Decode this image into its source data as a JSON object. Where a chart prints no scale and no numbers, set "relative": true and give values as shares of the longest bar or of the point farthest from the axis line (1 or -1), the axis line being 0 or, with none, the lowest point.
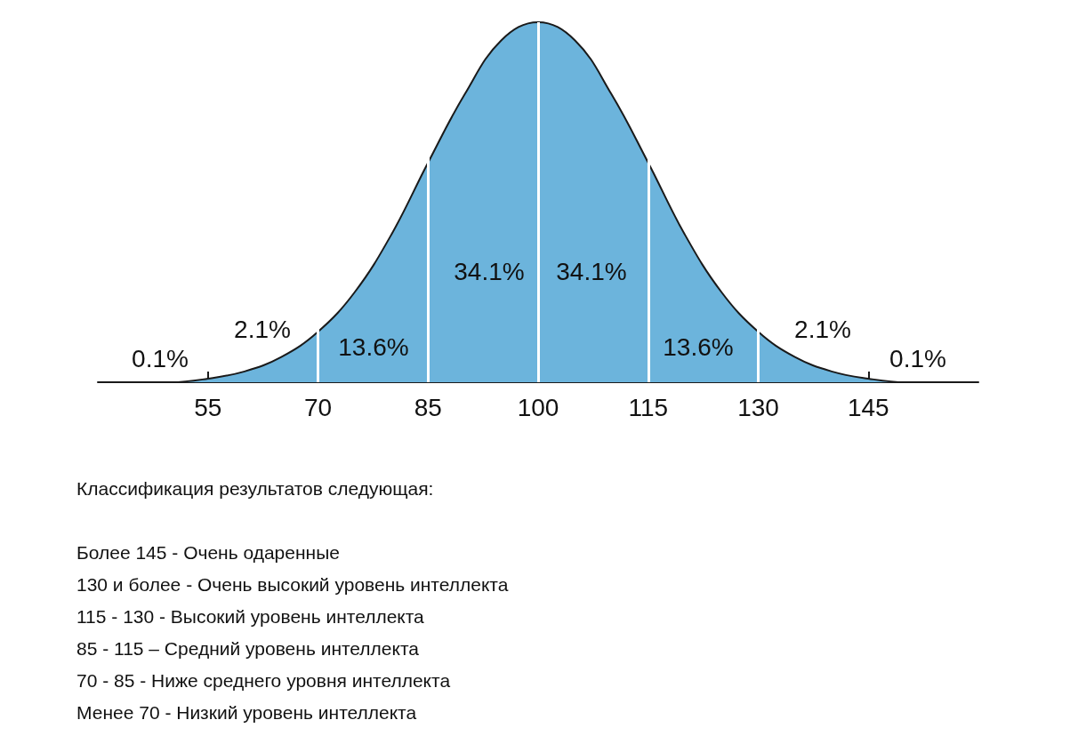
{
  "chart_data": {
    "type": "area",
    "relative": true,
    "color": "#6cb4dc",
    "x": [
      40,
      45,
      50,
      55,
      60,
      65,
      70,
      75,
      80,
      85,
      90,
      95,
      100,
      105,
      110,
      115,
      120,
      125,
      130,
      135,
      140,
      145,
      150,
      155,
      160
    ],
    "values": [
      0.0,
      0.0,
      0.0,
      0.01,
      0.03,
      0.07,
      0.14,
      0.25,
      0.41,
      0.61,
      0.8,
      0.95,
      1.0,
      0.95,
      0.8,
      0.61,
      0.41,
      0.25,
      0.14,
      0.07,
      0.03,
      0.01,
      0.0,
      0.0,
      0.0
    ],
    "xlim": [
      40,
      160
    ],
    "xticks": [
      55,
      70,
      85,
      100,
      115,
      130,
      145
    ],
    "ref_lines": [
      {
        "axis": "x",
        "value": 70,
        "color": "#ffffff"
      },
      {
        "axis": "x",
        "value": 85,
        "color": "#ffffff"
      },
      {
        "axis": "x",
        "value": 100,
        "color": "#ffffff"
      },
      {
        "axis": "x",
        "value": 115,
        "color": "#ffffff"
      },
      {
        "axis": "x",
        "value": 130,
        "color": "#ffffff"
      }
    ],
    "annotations": [
      "0.1%",
      "2.1%",
      "13.6%",
      "34.1%",
      "34.1%",
      "13.6%",
      "2.1%",
      "0.1%",
      "Классификация результатов следующая:",
      "Более 145 - Очень одаренные",
      "130 и более - Очень высокий уровень интеллекта",
      "115 - 130 - Высокий уровень интеллекта",
      "85 - 115 – Средний уровень интеллекта",
      "70 - 85 - Ниже среднего уровня интеллекта",
      "Менее 70 - Низкий уровень интеллекта"
    ],
    "grid": false,
    "marker": "none",
    "line_style": "solid"
  }
}
